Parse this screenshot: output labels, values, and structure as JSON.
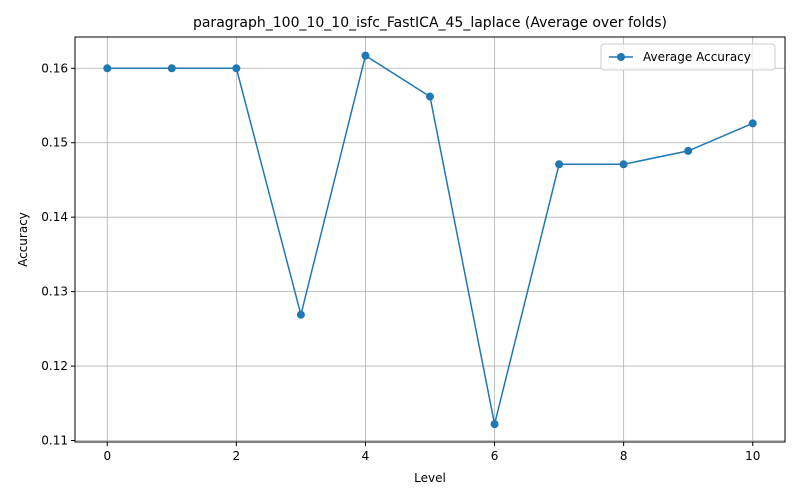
{
  "chart_data": {
    "type": "line",
    "title": "paragraph_100_10_10_isfc_FastICA_45_laplace (Average over folds)",
    "xlabel": "Level",
    "ylabel": "Accuracy",
    "x": [
      0,
      1,
      2,
      3,
      4,
      5,
      6,
      7,
      8,
      9,
      10
    ],
    "series": [
      {
        "name": "Average Accuracy",
        "color": "#1f77b4",
        "marker": "circle",
        "values": [
          0.16,
          0.16,
          0.16,
          0.1269,
          0.1617,
          0.1562,
          0.1122,
          0.1471,
          0.1471,
          0.1489,
          0.1526
        ]
      }
    ],
    "xlim": [
      -0.5,
      10.5
    ],
    "ylim": [
      0.1098,
      0.1642
    ],
    "xticks": [
      0,
      2,
      4,
      6,
      8,
      10
    ],
    "xtick_labels": [
      "0",
      "2",
      "4",
      "6",
      "8",
      "10"
    ],
    "yticks": [
      0.11,
      0.12,
      0.13,
      0.14,
      0.15,
      0.16
    ],
    "ytick_labels": [
      "0.11",
      "0.12",
      "0.13",
      "0.14",
      "0.15",
      "0.16"
    ],
    "grid": true,
    "legend_position": "top-right"
  }
}
